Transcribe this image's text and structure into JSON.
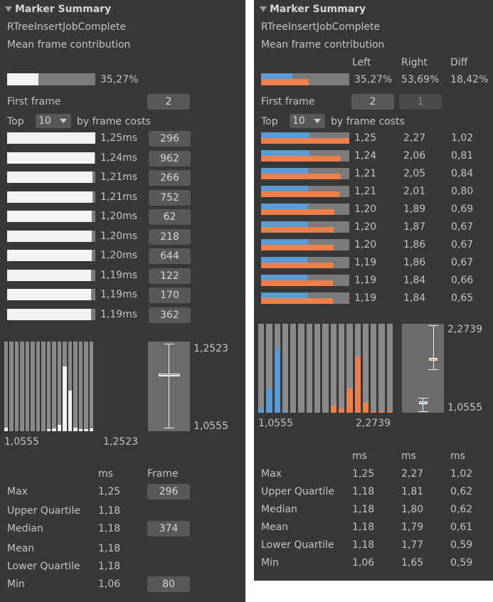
{
  "left": {
    "header": "Marker Summary",
    "marker_name": "RTreeInsertJobComplete",
    "mean_label": "Mean frame contribution",
    "mean_percent": "35,27%",
    "mean_fraction": 0.3527,
    "first_frame_label": "First frame",
    "first_frame_value": "2",
    "top_label": "Top",
    "top_value": "10",
    "by_frame_costs": "by frame costs",
    "top_frames": [
      {
        "time": "1,25ms",
        "frame": "296",
        "fraction": 1.0
      },
      {
        "time": "1,24ms",
        "frame": "962",
        "fraction": 0.99
      },
      {
        "time": "1,21ms",
        "frame": "266",
        "fraction": 0.967
      },
      {
        "time": "1,21ms",
        "frame": "752",
        "fraction": 0.967
      },
      {
        "time": "1,20ms",
        "frame": "62",
        "fraction": 0.96
      },
      {
        "time": "1,20ms",
        "frame": "218",
        "fraction": 0.96
      },
      {
        "time": "1,20ms",
        "frame": "644",
        "fraction": 0.96
      },
      {
        "time": "1,19ms",
        "frame": "122",
        "fraction": 0.952
      },
      {
        "time": "1,19ms",
        "frame": "170",
        "fraction": 0.952
      },
      {
        "time": "1,19ms",
        "frame": "362",
        "fraction": 0.952
      }
    ],
    "histogram": {
      "bins": [
        0.04,
        0,
        0,
        0,
        0,
        0,
        0,
        0,
        0.02,
        0.03,
        0.07,
        0.72,
        0.45,
        0.04,
        0.02,
        0.02,
        0.03
      ],
      "min_label": "1,0555",
      "max_label": "1,2523"
    },
    "boxplot": {
      "max_label": "1,2523",
      "min_label": "1,0555",
      "min": 1.06,
      "lower_quartile": 1.18,
      "median": 1.18,
      "upper_quartile": 1.18,
      "max": 1.25,
      "range_min": 1.0555,
      "range_max": 1.2523
    },
    "stats": {
      "ms_header": "ms",
      "frame_header": "Frame",
      "rows": [
        {
          "label": "Max",
          "ms": "1,25",
          "frame": "296"
        },
        {
          "label": "Upper Quartile",
          "ms": "1,18",
          "frame": ""
        },
        {
          "label": "Median",
          "ms": "1,18",
          "frame": "374"
        },
        {
          "label": "Mean",
          "ms": "1,18",
          "frame": ""
        },
        {
          "label": "Lower Quartile",
          "ms": "1,18",
          "frame": ""
        },
        {
          "label": "Min",
          "ms": "1,06",
          "frame": "80"
        }
      ]
    }
  },
  "right": {
    "header": "Marker Summary",
    "marker_name": "RTreeInsertJobComplete",
    "mean_label": "Mean frame contribution",
    "col_left": "Left",
    "col_right": "Right",
    "col_diff": "Diff",
    "mean_left": "35,27%",
    "mean_right": "53,69%",
    "mean_diff": "18,42%",
    "mean_left_fraction": 0.3527,
    "mean_right_fraction": 0.5369,
    "first_frame_label": "First frame",
    "first_frame_left": "2",
    "first_frame_right": "1",
    "top_label": "Top",
    "top_value": "10",
    "by_frame_costs": "by frame costs",
    "top_frames": [
      {
        "left": "1,25",
        "right": "2,27",
        "diff": "1,02",
        "lf": 0.55,
        "rf": 1.0
      },
      {
        "left": "1,24",
        "right": "2,06",
        "diff": "0,81",
        "lf": 0.546,
        "rf": 0.907
      },
      {
        "left": "1,21",
        "right": "2,05",
        "diff": "0,84",
        "lf": 0.533,
        "rf": 0.903
      },
      {
        "left": "1,21",
        "right": "2,01",
        "diff": "0,80",
        "lf": 0.533,
        "rf": 0.885
      },
      {
        "left": "1,20",
        "right": "1,89",
        "diff": "0,69",
        "lf": 0.529,
        "rf": 0.833
      },
      {
        "left": "1,20",
        "right": "1,87",
        "diff": "0,67",
        "lf": 0.529,
        "rf": 0.824
      },
      {
        "left": "1,20",
        "right": "1,86",
        "diff": "0,67",
        "lf": 0.529,
        "rf": 0.819
      },
      {
        "left": "1,19",
        "right": "1,86",
        "diff": "0,67",
        "lf": 0.524,
        "rf": 0.819
      },
      {
        "left": "1,19",
        "right": "1,84",
        "diff": "0,66",
        "lf": 0.524,
        "rf": 0.811
      },
      {
        "left": "1,19",
        "right": "1,84",
        "diff": "0,65",
        "lf": 0.524,
        "rf": 0.811
      }
    ],
    "histogram": {
      "blue_bins": [
        0.05,
        0.27,
        0.72,
        0.02,
        0,
        0,
        0,
        0,
        0,
        0,
        0,
        0,
        0,
        0,
        0,
        0,
        0
      ],
      "orange_bins": [
        0,
        0,
        0,
        0,
        0,
        0,
        0,
        0,
        0,
        0.08,
        0.05,
        0.27,
        0.63,
        0.11,
        0.02,
        0.02,
        0.01
      ],
      "min_label": "1,0555",
      "max_label": "2,2739"
    },
    "boxplot": {
      "max_label": "2,2739",
      "min_label": "1,0555",
      "range_min": 1.0555,
      "range_max": 2.2739,
      "left_series": {
        "min": 1.06,
        "lower_quartile": 1.18,
        "median": 1.18,
        "upper_quartile": 1.18,
        "max": 1.25
      },
      "right_series": {
        "min": 1.65,
        "lower_quartile": 1.77,
        "median": 1.8,
        "upper_quartile": 1.81,
        "max": 2.27
      }
    },
    "stats": {
      "ms_header": "ms",
      "rows": [
        {
          "label": "Max",
          "left": "1,25",
          "right": "2,27",
          "diff": "1,02"
        },
        {
          "label": "Upper Quartile",
          "left": "1,18",
          "right": "1,81",
          "diff": "0,62"
        },
        {
          "label": "Median",
          "left": "1,18",
          "right": "1,80",
          "diff": "0,62"
        },
        {
          "label": "Mean",
          "left": "1,18",
          "right": "1,79",
          "diff": "0,61"
        },
        {
          "label": "Lower Quartile",
          "left": "1,18",
          "right": "1,77",
          "diff": "0,59"
        },
        {
          "label": "Min",
          "left": "1,06",
          "right": "1,65",
          "diff": "0,59"
        }
      ]
    }
  },
  "colors": {
    "panel_bg": "#383838",
    "bar_fill": "#f2f2f2",
    "left_series": "#5b9bd5",
    "right_series": "#ec7f4a"
  }
}
